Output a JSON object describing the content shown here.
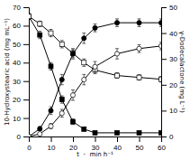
{
  "chart_data": {
    "type": "line",
    "xlabel": "t ・ min h⁻¹",
    "ylabel": "10-Hydroxystearic acid (mg mL⁻¹)",
    "y2label": "γ-Dodecalactone (mg L⁻¹)",
    "x": [
      0,
      5,
      10,
      15,
      20,
      25,
      30,
      40,
      50,
      60
    ],
    "xlim": [
      0,
      60
    ],
    "xticks": [
      0,
      10,
      20,
      30,
      40,
      50,
      60
    ],
    "ylim": [
      0,
      70
    ],
    "yticks": [
      0,
      10,
      20,
      30,
      40,
      50,
      60,
      70
    ],
    "y2lim": [
      0,
      50
    ],
    "y2ticks": [
      0,
      10,
      20,
      30,
      40,
      50
    ],
    "series": [
      {
        "axis": "y",
        "marker": "square",
        "color": "black",
        "values": [
          65,
          55,
          38,
          20,
          8,
          4,
          2,
          2,
          2,
          2
        ],
        "errors": [
          1.5,
          2,
          2,
          2,
          1.5,
          1,
          0.5,
          0.3,
          0.3,
          0.3
        ]
      },
      {
        "axis": "y",
        "marker": "open-square",
        "color": "black",
        "values": [
          65,
          61,
          56,
          50,
          45,
          40,
          36,
          33,
          32,
          31
        ],
        "errors": [
          1.5,
          1.5,
          2,
          2,
          2,
          2,
          2,
          1.5,
          1.5,
          1.5
        ]
      },
      {
        "axis": "y2",
        "marker": "circle",
        "color": "black",
        "values": [
          0,
          3,
          10,
          22,
          32,
          38,
          42,
          44,
          44,
          44
        ],
        "errors": [
          0,
          0.8,
          1.5,
          2,
          2,
          2,
          1.5,
          1.5,
          1.5,
          1.5
        ]
      },
      {
        "axis": "y2",
        "marker": "open-circle",
        "color": "black",
        "values": [
          0,
          1,
          4,
          9,
          16,
          22,
          27,
          32,
          34,
          35
        ],
        "errors": [
          0,
          0.5,
          1,
          1.5,
          2,
          2,
          2,
          2,
          1.5,
          1.5
        ]
      }
    ]
  }
}
